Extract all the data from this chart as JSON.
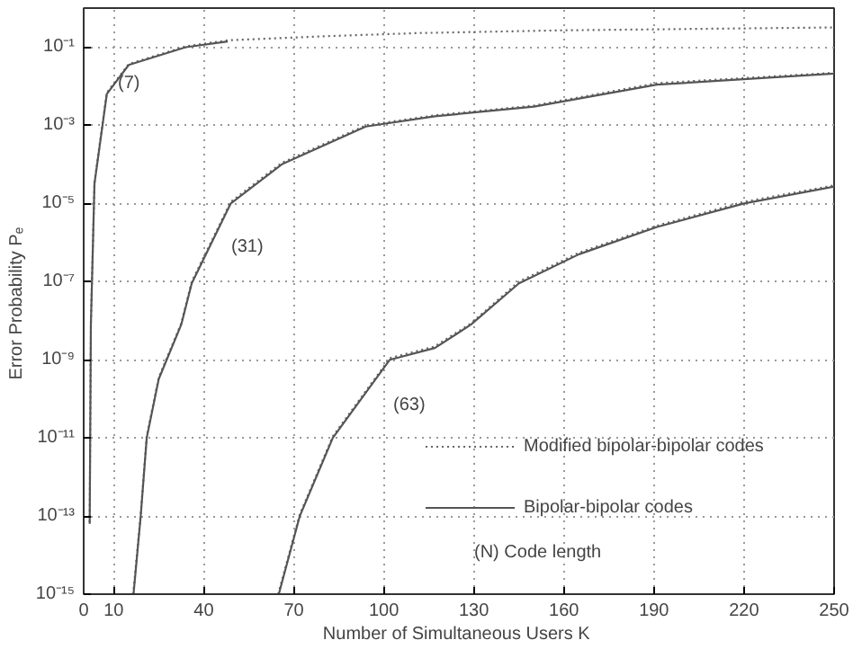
{
  "chart_data": {
    "type": "line",
    "xlabel": "Number of Simultaneous Users  K",
    "ylabel": "Error Probability  Pₑ",
    "log": "y",
    "grid": true,
    "legend": "bottom right",
    "xlim": [
      0,
      250
    ],
    "xticks": [
      0,
      10,
      40,
      70,
      100,
      130,
      160,
      190,
      220,
      250
    ],
    "ylim": [
      1e-15,
      1
    ],
    "yticks": [
      {
        "value": 1e-15,
        "label": "10⁻¹⁵"
      },
      {
        "value": 1e-13,
        "label": "10⁻¹³"
      },
      {
        "value": 1e-11,
        "label": "10⁻¹¹"
      },
      {
        "value": 1e-09,
        "label": "10⁻⁹"
      },
      {
        "value": 1e-07,
        "label": "10⁻⁷"
      },
      {
        "value": 1e-05,
        "label": "10⁻⁵"
      },
      {
        "value": 0.001,
        "label": "10⁻³"
      },
      {
        "value": 0.1,
        "label": "10⁻¹"
      }
    ],
    "series": [
      {
        "name": "Modified bipolar-bipolar codes",
        "color": "#666666",
        "line_style": "dotted",
        "x": [
          2,
          2.4,
          3.6,
          7.7,
          15,
          34,
          48,
          80,
          112,
          160,
          250
        ],
        "values": [
          7e-14,
          9e-09,
          3.5e-05,
          0.0068,
          0.037,
          0.105,
          0.15,
          0.19,
          0.23,
          0.27,
          0.32
        ]
      },
      {
        "name": "Bipolar-bipolar codes",
        "color": "#555555",
        "line_style": "solid",
        "x": [
          2,
          2.4,
          3.6,
          7.7,
          15,
          34,
          48
        ],
        "values": [
          6.3e-14,
          7.9e-09,
          3.2e-05,
          0.0063,
          0.035,
          0.1,
          0.14
        ]
      },
      {
        "color": "#666666",
        "line_style": "dotted",
        "x": [
          16.5,
          19,
          21,
          25,
          32.5,
          36,
          49,
          66,
          94,
          117,
          150,
          191,
          250
        ],
        "values": [
          1e-15,
          1.1e-13,
          1.1e-11,
          3.5e-10,
          8.5e-09,
          1e-07,
          1.1e-05,
          0.00011,
          0.001,
          0.0018,
          0.0032,
          0.012,
          0.022
        ]
      },
      {
        "color": "#555555",
        "line_style": "solid",
        "x": [
          16.6,
          19,
          21,
          25,
          32.5,
          36,
          49,
          66,
          94,
          117,
          150,
          191,
          250
        ],
        "values": [
          1e-15,
          1e-13,
          1e-11,
          3.2e-10,
          7.9e-09,
          9e-08,
          1e-05,
          0.0001,
          0.00093,
          0.0017,
          0.003,
          0.011,
          0.021
        ]
      },
      {
        "color": "#666666",
        "line_style": "dotted",
        "x": [
          64.8,
          72,
          83,
          102,
          117,
          129,
          145,
          165,
          191,
          220,
          250
        ],
        "values": [
          1e-15,
          1.1e-13,
          1.1e-11,
          1.1e-09,
          2.2e-09,
          8.5e-09,
          1e-07,
          5.5e-07,
          2.7e-06,
          1.1e-05,
          2.9e-05
        ]
      },
      {
        "color": "#555555",
        "line_style": "solid",
        "x": [
          65,
          72,
          83,
          102,
          117,
          129,
          145,
          165,
          191,
          220,
          250
        ],
        "values": [
          1e-15,
          1e-13,
          1e-11,
          1e-09,
          2e-09,
          7.9e-09,
          9e-08,
          5e-07,
          2.5e-06,
          1e-05,
          2.7e-05
        ]
      }
    ],
    "annotations": [
      "(7)",
      "(31)",
      "(63)",
      "(N)  Code length"
    ]
  }
}
